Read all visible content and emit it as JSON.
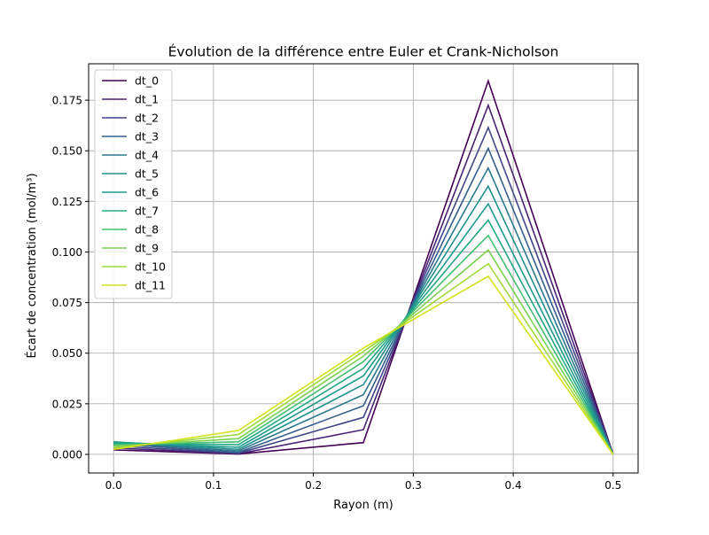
{
  "chart_data": {
    "type": "line",
    "title": "Évolution de la différence entre Euler et Crank-Nicholson",
    "xlabel": "Rayon (m)",
    "ylabel": "Écart de concentration (mol/m³)",
    "xlim": [
      -0.025,
      0.525
    ],
    "ylim": [
      -0.0092,
      0.193
    ],
    "grid": true,
    "legend_position": "top-left",
    "x_ticks": [
      0.0,
      0.1,
      0.2,
      0.3,
      0.4,
      0.5
    ],
    "x_tick_labels": [
      "0.0",
      "0.1",
      "0.2",
      "0.3",
      "0.4",
      "0.5"
    ],
    "y_ticks": [
      0.0,
      0.025,
      0.05,
      0.075,
      0.1,
      0.125,
      0.15,
      0.175
    ],
    "y_tick_labels": [
      "0.000",
      "0.025",
      "0.050",
      "0.075",
      "0.100",
      "0.125",
      "0.150",
      "0.175"
    ],
    "x": [
      0.0,
      0.125,
      0.25,
      0.375,
      0.5
    ],
    "series": [
      {
        "name": "dt_0",
        "color": "#440154",
        "values": [
          0.0022,
          0.0002,
          0.0058,
          0.1845,
          0.0
        ]
      },
      {
        "name": "dt_1",
        "color": "#482475",
        "values": [
          0.0032,
          0.0003,
          0.0122,
          0.1725,
          0.0
        ]
      },
      {
        "name": "dt_2",
        "color": "#414487",
        "values": [
          0.0042,
          0.0006,
          0.0183,
          0.1615,
          0.0
        ]
      },
      {
        "name": "dt_3",
        "color": "#355f8d",
        "values": [
          0.0052,
          0.001,
          0.024,
          0.1512,
          0.0
        ]
      },
      {
        "name": "dt_4",
        "color": "#2a788e",
        "values": [
          0.0058,
          0.0017,
          0.0295,
          0.1415,
          0.0
        ]
      },
      {
        "name": "dt_5",
        "color": "#21918c",
        "values": [
          0.0062,
          0.0025,
          0.0345,
          0.1325,
          0.0
        ]
      },
      {
        "name": "dt_6",
        "color": "#1f9a8a",
        "values": [
          0.006,
          0.0035,
          0.0388,
          0.1238,
          0.0
        ]
      },
      {
        "name": "dt_7",
        "color": "#22a884",
        "values": [
          0.0055,
          0.0048,
          0.0425,
          0.1158,
          0.0
        ]
      },
      {
        "name": "dt_8",
        "color": "#44bf70",
        "values": [
          0.0048,
          0.0062,
          0.0458,
          0.1082,
          0.0
        ]
      },
      {
        "name": "dt_9",
        "color": "#7ad151",
        "values": [
          0.004,
          0.0078,
          0.0485,
          0.101,
          0.0
        ]
      },
      {
        "name": "dt_10",
        "color": "#a0da39",
        "values": [
          0.0032,
          0.0098,
          0.0508,
          0.0942,
          0.0
        ]
      },
      {
        "name": "dt_11",
        "color": "#d2e21b",
        "values": [
          0.0024,
          0.0118,
          0.0525,
          0.088,
          0.0
        ]
      }
    ]
  }
}
